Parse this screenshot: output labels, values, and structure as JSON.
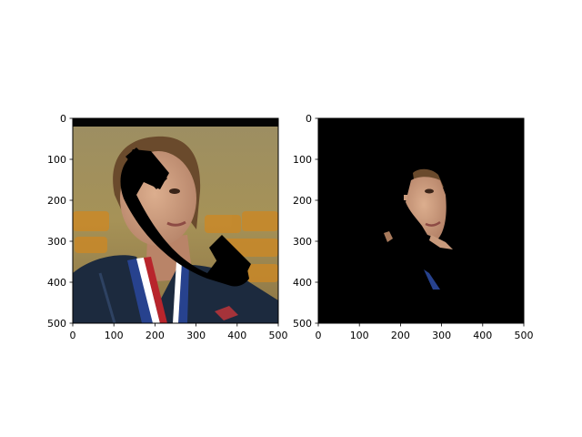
{
  "chart_data": [
    {
      "type": "image",
      "panel": "left",
      "content": "Photo of a young woman with brown hair wearing a dark jacket and a red-white-blue medal ribbon; a large black telephone-handset-shaped occlusion covers the left side of her face.",
      "colors": {
        "background_wall": "#9c8a5a",
        "hair": "#6a4a2c",
        "skin": "#c99a7c",
        "jacket": "#1c2a3e",
        "ribbon_red": "#b8252c",
        "ribbon_blue": "#27428e",
        "occlusion": "#000000",
        "orange_seats": "#c98828"
      },
      "x_ticks": [
        "0",
        "100",
        "200",
        "300",
        "400",
        "500"
      ],
      "y_ticks": [
        "0",
        "100",
        "200",
        "300",
        "400",
        "500"
      ],
      "xlim": [
        0,
        500
      ],
      "ylim": [
        500,
        0
      ],
      "grid": false
    },
    {
      "type": "image",
      "panel": "right",
      "content": "Segmentation mask output: mostly black, revealing only the visible part of the woman's face and small patches (right ear area, chin, a blue ribbon fragment).",
      "colors": {
        "background": "#000000",
        "skin": "#c99a7c",
        "hair": "#6a4a2c",
        "ribbon_blue": "#27428e"
      },
      "x_ticks": [
        "0",
        "100",
        "200",
        "300",
        "400",
        "500"
      ],
      "y_ticks": [
        "0",
        "100",
        "200",
        "300",
        "400",
        "500"
      ],
      "xlim": [
        0,
        500
      ],
      "ylim": [
        500,
        0
      ],
      "grid": false
    }
  ]
}
